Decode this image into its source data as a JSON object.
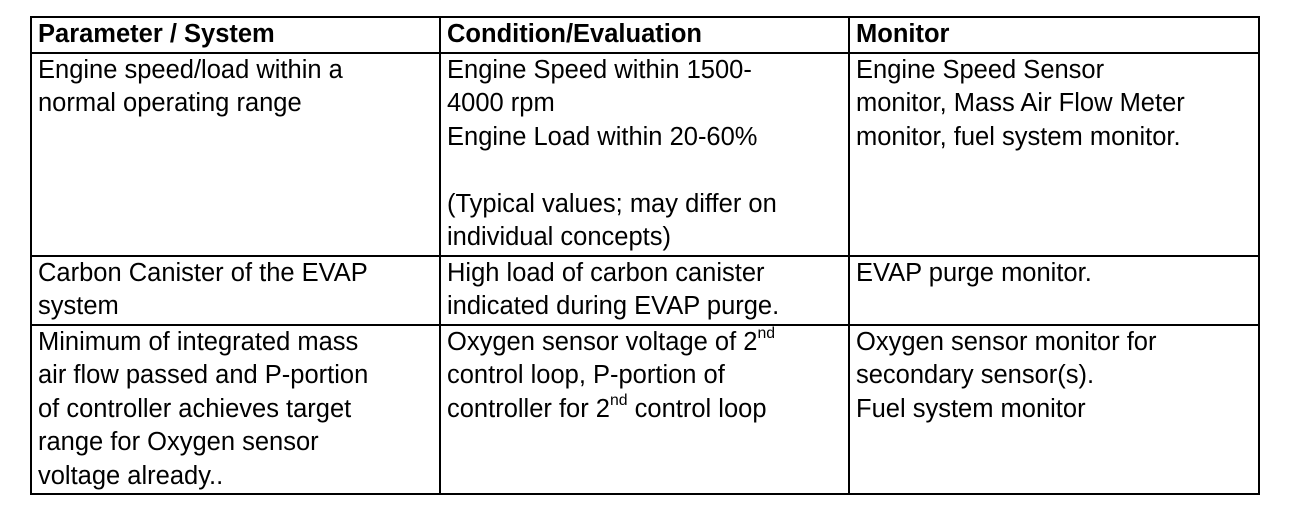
{
  "table": {
    "headers": [
      "Parameter / System",
      "Condition/Evaluation",
      "Monitor"
    ],
    "rows": [
      {
        "parameter": [
          "Engine speed/load within a",
          "normal operating range"
        ],
        "condition": [
          "Engine Speed within 1500-",
          "4000 rpm",
          "Engine Load within 20-60%"
        ],
        "condition_note": [
          "(Typical values; may differ on",
          "individual concepts)"
        ],
        "monitor": [
          "Engine Speed Sensor",
          "monitor, Mass Air Flow Meter",
          "monitor, fuel system monitor."
        ]
      },
      {
        "parameter": [
          "Carbon Canister of the EVAP",
          "system"
        ],
        "condition": [
          "High load of carbon canister",
          "indicated during EVAP purge."
        ],
        "monitor": [
          "EVAP purge monitor."
        ]
      },
      {
        "parameter": [
          "Minimum of integrated mass",
          "air flow passed and P-portion",
          "of controller achieves target",
          "range for Oxygen sensor",
          "voltage already.."
        ],
        "condition": {
          "line1_pre": "Oxygen sensor voltage of 2",
          "line1_sup": "nd",
          "line2": "control loop, P-portion of",
          "line3_pre": "controller for 2",
          "line3_sup": "nd",
          "line3_post": " control loop"
        },
        "monitor": [
          "Oxygen sensor monitor for",
          "secondary sensor(s).",
          "Fuel system monitor"
        ]
      }
    ]
  }
}
